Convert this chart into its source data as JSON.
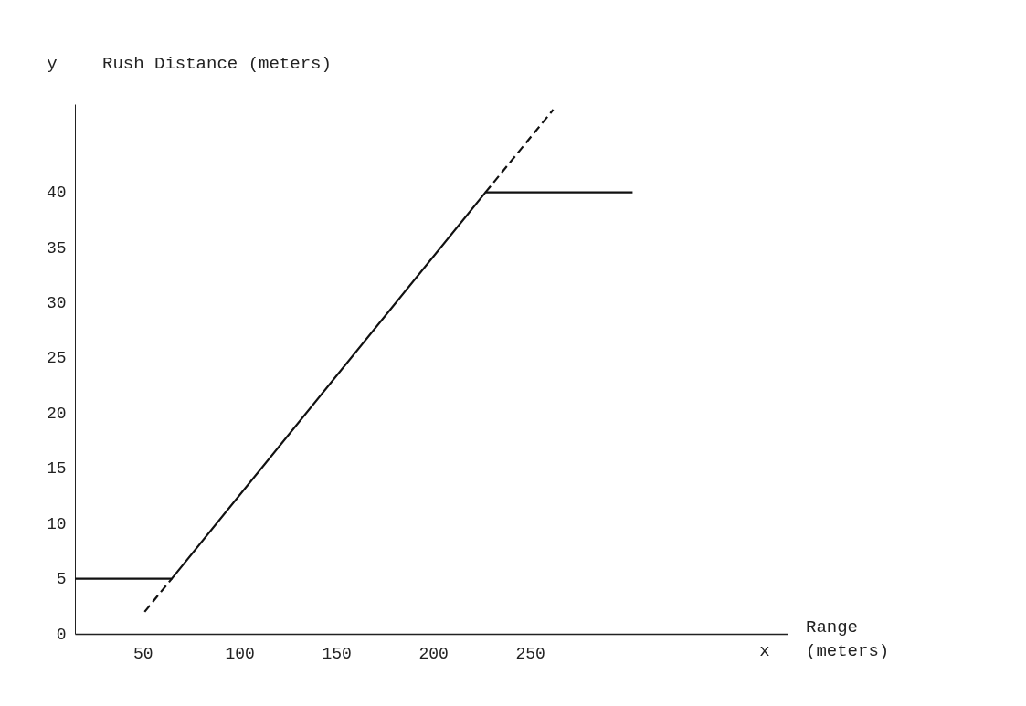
{
  "chart_data": {
    "type": "line",
    "ylabel": "Rush Distance (meters)",
    "xlabel": "Range (meters)",
    "annotations": [
      "y",
      "x"
    ],
    "xlim": [
      15,
      383
    ],
    "xticks": [
      50,
      100,
      150,
      200,
      250
    ],
    "ylim": [
      0,
      48
    ],
    "yticks": [
      0,
      5,
      10,
      15,
      20,
      25,
      30,
      35,
      40
    ],
    "grid": false,
    "legend": false,
    "marker": "none",
    "series": [
      {
        "color": "#111111",
        "line_style": "solid",
        "x": [
          15,
          65,
          227,
          303
        ],
        "values": [
          5,
          5,
          40,
          40
        ]
      },
      {
        "color": "#111111",
        "line_style": "dashed",
        "x": [
          51,
          65
        ],
        "values": [
          2,
          5
        ]
      },
      {
        "color": "#111111",
        "line_style": "dashed",
        "x": [
          227,
          262
        ],
        "values": [
          40,
          47.5
        ]
      }
    ]
  }
}
